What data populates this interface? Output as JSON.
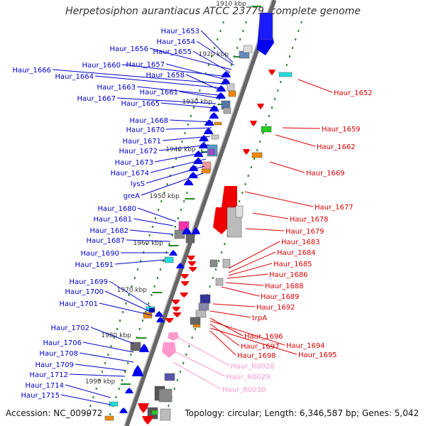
{
  "title": "Herpetosiphon aurantiacus ATCC 23779, complete genome",
  "footer": {
    "accession": "Accession: NC_009972",
    "summary": "Topology: circular; Length: 6,346,587 bp; Genes: 5,042"
  },
  "colors": {
    "backbone": "#888888",
    "forward_label": "#0000cc",
    "reverse_label": "#dd0000",
    "rna_label": "#ff99cc",
    "tick": "#228822"
  },
  "tick_labels": [
    "1910 kbp",
    "1920 kbp",
    "1930 kbp",
    "1940 kbp",
    "1950 kbp",
    "1960 kbp",
    "1970 kbp",
    "1980 kbp",
    "1990 kbp"
  ],
  "left_genes": [
    "Haur_1653",
    "Haur_1654",
    "Haur_1656",
    "Haur_1655",
    "Haur_1660",
    "Haur_1657",
    "Haur_1666",
    "Haur_1664",
    "Haur_1658",
    "Haur_1663",
    "Haur_1661",
    "Haur_1667",
    "Haur_1665",
    "Haur_1668",
    "Haur_1670",
    "Haur_1671",
    "Haur_1672",
    "Haur_1673",
    "Haur_1674",
    "lysS",
    "greA",
    "Haur_1680",
    "Haur_1681",
    "Haur_1682",
    "Haur_1687",
    "Haur_1690",
    "Haur_1691",
    "Haur_1699",
    "Haur_1700",
    "Haur_1701",
    "Haur_1702",
    "Haur_1706",
    "Haur_1708",
    "Haur_1709",
    "Haur_1712",
    "Haur_1714",
    "Haur_1715"
  ],
  "right_genes": [
    "Haur_1652",
    "Haur_1659",
    "Haur_1662",
    "Haur_1669",
    "Haur_1677",
    "Haur_1678",
    "Haur_1679",
    "Haur_1683",
    "Haur_1684",
    "Haur_1685",
    "Haur_1686",
    "Haur_1688",
    "Haur_1689",
    "Haur_1692",
    "trpA",
    "Haur_1696",
    "Haur_1694",
    "Haur_1697",
    "Haur_1695",
    "Haur_1698"
  ],
  "rna_genes": [
    "Haur_R0028",
    "Haur_R0029",
    "Haur_R0030"
  ]
}
